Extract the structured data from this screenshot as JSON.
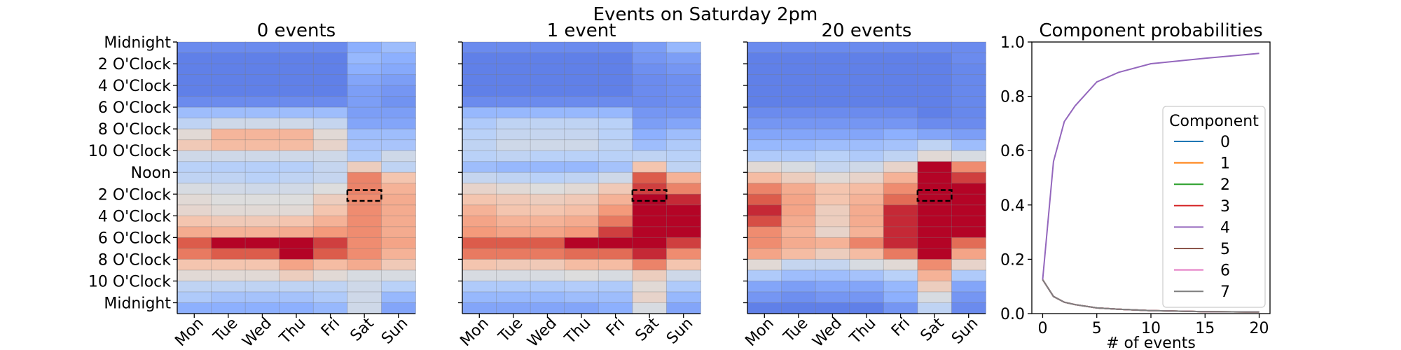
{
  "figure": {
    "suptitle": "Events on Saturday 2pm"
  },
  "chart_data": [
    {
      "type": "heatmap",
      "title": "0 events",
      "x_categories": [
        "Mon",
        "Tue",
        "Wed",
        "Thu",
        "Fri",
        "Sat",
        "Sun"
      ],
      "y_tick_labels": [
        "Midnight",
        "2 O'Clock",
        "4 O'Clock",
        "6 O'Clock",
        "8 O'Clock",
        "10 O'Clock",
        "Noon",
        "2 O'Clock",
        "4 O'Clock",
        "6 O'Clock",
        "8 O'Clock",
        "10 O'Clock",
        "Midnight"
      ],
      "highlight": {
        "day": "Sat",
        "hour": 14
      },
      "colormap": "coolwarm",
      "values": [
        [
          0.15,
          0.15,
          0.15,
          0.15,
          0.15,
          0.25,
          0.3
        ],
        [
          0.12,
          0.12,
          0.12,
          0.12,
          0.12,
          0.28,
          0.25
        ],
        [
          0.12,
          0.12,
          0.12,
          0.12,
          0.12,
          0.25,
          0.23
        ],
        [
          0.12,
          0.12,
          0.12,
          0.12,
          0.12,
          0.22,
          0.2
        ],
        [
          0.12,
          0.12,
          0.12,
          0.12,
          0.12,
          0.2,
          0.18
        ],
        [
          0.15,
          0.15,
          0.15,
          0.15,
          0.15,
          0.2,
          0.17
        ],
        [
          0.3,
          0.3,
          0.3,
          0.3,
          0.3,
          0.2,
          0.2
        ],
        [
          0.4,
          0.45,
          0.45,
          0.45,
          0.42,
          0.22,
          0.22
        ],
        [
          0.52,
          0.67,
          0.67,
          0.67,
          0.52,
          0.3,
          0.3
        ],
        [
          0.6,
          0.65,
          0.65,
          0.65,
          0.55,
          0.33,
          0.33
        ],
        [
          0.45,
          0.45,
          0.45,
          0.45,
          0.45,
          0.35,
          0.45
        ],
        [
          0.38,
          0.37,
          0.37,
          0.37,
          0.42,
          0.58,
          0.4
        ],
        [
          0.4,
          0.4,
          0.38,
          0.4,
          0.42,
          0.8,
          0.62
        ],
        [
          0.48,
          0.46,
          0.45,
          0.46,
          0.5,
          0.8,
          0.68
        ],
        [
          0.52,
          0.5,
          0.5,
          0.5,
          0.58,
          0.78,
          0.7
        ],
        [
          0.54,
          0.52,
          0.52,
          0.52,
          0.62,
          0.78,
          0.7
        ],
        [
          0.62,
          0.6,
          0.6,
          0.62,
          0.68,
          0.78,
          0.7
        ],
        [
          0.7,
          0.68,
          0.68,
          0.7,
          0.75,
          0.78,
          0.7
        ],
        [
          0.88,
          1.0,
          1.0,
          1.0,
          0.92,
          0.78,
          0.72
        ],
        [
          0.82,
          0.88,
          0.88,
          1.0,
          0.88,
          0.78,
          0.68
        ],
        [
          0.62,
          0.62,
          0.62,
          0.72,
          0.65,
          0.7,
          0.6
        ],
        [
          0.52,
          0.52,
          0.52,
          0.58,
          0.52,
          0.48,
          0.48
        ],
        [
          0.4,
          0.4,
          0.4,
          0.4,
          0.4,
          0.45,
          0.38
        ],
        [
          0.35,
          0.32,
          0.32,
          0.32,
          0.35,
          0.45,
          0.28
        ],
        [
          0.25,
          0.25,
          0.25,
          0.25,
          0.28,
          0.45,
          0.22
        ]
      ]
    },
    {
      "type": "heatmap",
      "title": "1 event",
      "x_categories": [
        "Mon",
        "Tue",
        "Wed",
        "Thu",
        "Fri",
        "Sat",
        "Sun"
      ],
      "y_tick_labels": [
        "Midnight",
        "2 O'Clock",
        "4 O'Clock",
        "6 O'Clock",
        "8 O'Clock",
        "10 O'Clock",
        "Noon",
        "2 O'Clock",
        "4 O'Clock",
        "6 O'Clock",
        "8 O'Clock",
        "10 O'Clock",
        "Midnight"
      ],
      "highlight": {
        "day": "Sat",
        "hour": 14
      },
      "colormap": "coolwarm",
      "values": [
        [
          0.15,
          0.15,
          0.15,
          0.15,
          0.15,
          0.2,
          0.28
        ],
        [
          0.12,
          0.12,
          0.12,
          0.12,
          0.12,
          0.18,
          0.2
        ],
        [
          0.12,
          0.12,
          0.12,
          0.12,
          0.12,
          0.16,
          0.18
        ],
        [
          0.12,
          0.12,
          0.12,
          0.12,
          0.12,
          0.15,
          0.16
        ],
        [
          0.12,
          0.12,
          0.12,
          0.12,
          0.12,
          0.15,
          0.16
        ],
        [
          0.15,
          0.15,
          0.15,
          0.15,
          0.15,
          0.15,
          0.16
        ],
        [
          0.28,
          0.28,
          0.28,
          0.28,
          0.28,
          0.18,
          0.18
        ],
        [
          0.35,
          0.4,
          0.4,
          0.4,
          0.38,
          0.2,
          0.22
        ],
        [
          0.38,
          0.42,
          0.42,
          0.42,
          0.38,
          0.25,
          0.3
        ],
        [
          0.4,
          0.45,
          0.45,
          0.45,
          0.4,
          0.3,
          0.35
        ],
        [
          0.38,
          0.4,
          0.38,
          0.38,
          0.38,
          0.4,
          0.38
        ],
        [
          0.3,
          0.28,
          0.28,
          0.28,
          0.32,
          0.62,
          0.4
        ],
        [
          0.42,
          0.4,
          0.38,
          0.4,
          0.45,
          0.88,
          0.68
        ],
        [
          0.55,
          0.52,
          0.5,
          0.52,
          0.6,
          0.92,
          0.8
        ],
        [
          0.62,
          0.6,
          0.58,
          0.6,
          0.68,
          1.0,
          0.95
        ],
        [
          0.68,
          0.62,
          0.62,
          0.64,
          0.75,
          1.0,
          1.0
        ],
        [
          0.72,
          0.68,
          0.68,
          0.7,
          0.82,
          1.0,
          1.0
        ],
        [
          0.75,
          0.72,
          0.72,
          0.75,
          0.92,
          1.0,
          1.0
        ],
        [
          0.88,
          0.88,
          0.88,
          1.0,
          1.0,
          1.0,
          0.92
        ],
        [
          0.82,
          0.82,
          0.82,
          0.85,
          0.85,
          0.95,
          0.78
        ],
        [
          0.62,
          0.6,
          0.6,
          0.65,
          0.65,
          0.8,
          0.62
        ],
        [
          0.48,
          0.48,
          0.48,
          0.5,
          0.48,
          0.58,
          0.45
        ],
        [
          0.35,
          0.35,
          0.35,
          0.36,
          0.35,
          0.52,
          0.35
        ],
        [
          0.28,
          0.28,
          0.28,
          0.3,
          0.3,
          0.55,
          0.28
        ],
        [
          0.22,
          0.22,
          0.22,
          0.22,
          0.25,
          0.48,
          0.22
        ]
      ]
    },
    {
      "type": "heatmap",
      "title": "20 events",
      "x_categories": [
        "Mon",
        "Tue",
        "Wed",
        "Thu",
        "Fri",
        "Sat",
        "Sun"
      ],
      "y_tick_labels": [
        "Midnight",
        "2 O'Clock",
        "4 O'Clock",
        "6 O'Clock",
        "8 O'Clock",
        "10 O'Clock",
        "Noon",
        "2 O'Clock",
        "4 O'Clock",
        "6 O'Clock",
        "8 O'Clock",
        "10 O'Clock",
        "Midnight"
      ],
      "highlight": {
        "day": "Sat",
        "hour": 14
      },
      "colormap": "coolwarm",
      "values": [
        [
          0.15,
          0.15,
          0.15,
          0.15,
          0.15,
          0.15,
          0.15
        ],
        [
          0.12,
          0.12,
          0.12,
          0.12,
          0.12,
          0.12,
          0.15
        ],
        [
          0.12,
          0.12,
          0.12,
          0.12,
          0.12,
          0.12,
          0.14
        ],
        [
          0.12,
          0.12,
          0.12,
          0.12,
          0.12,
          0.12,
          0.14
        ],
        [
          0.12,
          0.12,
          0.12,
          0.12,
          0.12,
          0.12,
          0.14
        ],
        [
          0.12,
          0.12,
          0.12,
          0.12,
          0.12,
          0.12,
          0.14
        ],
        [
          0.15,
          0.15,
          0.15,
          0.15,
          0.15,
          0.12,
          0.14
        ],
        [
          0.18,
          0.18,
          0.18,
          0.18,
          0.18,
          0.15,
          0.15
        ],
        [
          0.22,
          0.22,
          0.22,
          0.22,
          0.25,
          0.22,
          0.2
        ],
        [
          0.28,
          0.28,
          0.3,
          0.3,
          0.32,
          0.4,
          0.3
        ],
        [
          0.35,
          0.35,
          0.38,
          0.35,
          0.4,
          0.52,
          0.48
        ],
        [
          0.52,
          0.48,
          0.42,
          0.45,
          0.55,
          1.0,
          0.78
        ],
        [
          0.65,
          0.58,
          0.52,
          0.55,
          0.68,
          1.0,
          0.92
        ],
        [
          0.8,
          0.7,
          0.62,
          0.65,
          0.78,
          1.0,
          1.0
        ],
        [
          0.88,
          0.72,
          0.62,
          0.68,
          0.85,
          1.0,
          1.0
        ],
        [
          0.95,
          0.72,
          0.58,
          0.7,
          0.95,
          1.0,
          1.0
        ],
        [
          0.9,
          0.7,
          0.58,
          0.7,
          0.95,
          1.0,
          1.0
        ],
        [
          0.78,
          0.68,
          0.55,
          0.68,
          0.95,
          1.0,
          1.0
        ],
        [
          0.78,
          0.7,
          0.68,
          0.8,
          0.95,
          1.0,
          0.85
        ],
        [
          0.72,
          0.65,
          0.58,
          0.65,
          0.82,
          1.0,
          0.72
        ],
        [
          0.52,
          0.42,
          0.42,
          0.48,
          0.52,
          0.78,
          0.55
        ],
        [
          0.35,
          0.3,
          0.3,
          0.32,
          0.38,
          0.68,
          0.35
        ],
        [
          0.22,
          0.2,
          0.22,
          0.22,
          0.28,
          0.58,
          0.22
        ],
        [
          0.18,
          0.16,
          0.18,
          0.18,
          0.25,
          0.48,
          0.18
        ],
        [
          0.12,
          0.12,
          0.12,
          0.12,
          0.18,
          0.4,
          0.15
        ]
      ]
    },
    {
      "type": "line",
      "title": "Component probabilities",
      "xlabel": "# of events",
      "ylabel": "",
      "xlim": [
        -1,
        21
      ],
      "ylim": [
        0,
        1.0
      ],
      "x_ticks": [
        0,
        5,
        10,
        15,
        20
      ],
      "y_ticks": [
        0.0,
        0.2,
        0.4,
        0.6,
        0.8,
        1.0
      ],
      "y_tick_labels": [
        "0.0",
        "0.2",
        "0.4",
        "0.6",
        "0.8",
        "1.0"
      ],
      "x_tick_labels": [
        "0",
        "5",
        "10",
        "15",
        "20"
      ],
      "legend": {
        "title": "Component",
        "position": "right"
      },
      "x": [
        0,
        1,
        2,
        3,
        5,
        7,
        10,
        15,
        20
      ],
      "series": [
        {
          "name": "0",
          "color": "#1f77b4",
          "values": [
            0.125,
            0.063,
            0.042,
            0.033,
            0.021,
            0.016,
            0.011,
            0.007,
            0.006
          ]
        },
        {
          "name": "1",
          "color": "#ff7f0e",
          "values": [
            0.125,
            0.063,
            0.042,
            0.033,
            0.021,
            0.016,
            0.011,
            0.007,
            0.006
          ]
        },
        {
          "name": "2",
          "color": "#2ca02c",
          "values": [
            0.125,
            0.063,
            0.042,
            0.033,
            0.021,
            0.016,
            0.011,
            0.007,
            0.006
          ]
        },
        {
          "name": "3",
          "color": "#d62728",
          "values": [
            0.125,
            0.063,
            0.042,
            0.033,
            0.021,
            0.016,
            0.011,
            0.007,
            0.006
          ]
        },
        {
          "name": "4",
          "color": "#9467bd",
          "values": [
            0.125,
            0.56,
            0.707,
            0.765,
            0.853,
            0.888,
            0.92,
            0.94,
            0.958
          ]
        },
        {
          "name": "5",
          "color": "#8c564b",
          "values": [
            0.125,
            0.063,
            0.042,
            0.033,
            0.021,
            0.016,
            0.011,
            0.007,
            0.006
          ]
        },
        {
          "name": "6",
          "color": "#e377c2",
          "values": [
            0.125,
            0.063,
            0.042,
            0.033,
            0.021,
            0.016,
            0.011,
            0.007,
            0.006
          ]
        },
        {
          "name": "7",
          "color": "#7f7f7f",
          "values": [
            0.125,
            0.063,
            0.042,
            0.033,
            0.021,
            0.016,
            0.011,
            0.007,
            0.006
          ]
        }
      ]
    }
  ]
}
